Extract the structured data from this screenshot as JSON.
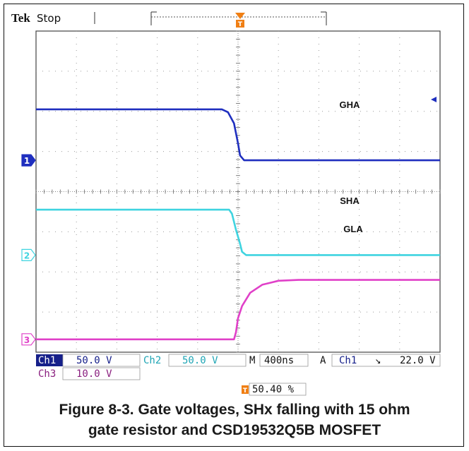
{
  "scope": {
    "brand": "Tek",
    "acq_state": "Stop",
    "trigger_marker": "T",
    "trigger_position": "50.40 %"
  },
  "settings": {
    "ch1_label": "Ch1",
    "ch1_scale": "50.0 V",
    "ch2_label": "Ch2",
    "ch2_scale": "50.0 V",
    "ch3_label": "Ch3",
    "ch3_scale": "10.0 V",
    "timebase_label": "M",
    "timebase": "400ns",
    "trigger_label": "A",
    "trigger_source": "Ch1",
    "trigger_slope": "↘",
    "trigger_level": "22.0 V"
  },
  "caption": {
    "line1": "Figure 8-3. Gate voltages, SHx falling with 15 ohm",
    "line2": "gate resistor and CSD19532Q5B MOSFET"
  },
  "colors": {
    "ch1": "#1f2fbf",
    "ch2": "#3fd4e0",
    "ch3": "#e040c8",
    "trigger": "#f07f14",
    "grid": "#9a9a9a"
  },
  "chart_data": {
    "type": "line",
    "x_unit": "divisions",
    "y_unit": "divisions",
    "xlim": [
      0,
      10
    ],
    "ylim": [
      -4,
      4
    ],
    "grid": true,
    "series": [
      {
        "name": "GHA",
        "channel": "1",
        "channel_marker": "1",
        "x": [
          0,
          4.6,
          4.75,
          4.9,
          5.0,
          5.05,
          5.15,
          10
        ],
        "y": [
          2.05,
          2.05,
          1.98,
          1.7,
          1.2,
          0.9,
          0.78,
          0.78
        ]
      },
      {
        "name": "SHA",
        "channel": "2",
        "channel_marker": "2",
        "x": [
          0,
          4.78,
          4.85,
          4.95,
          5.05,
          5.1,
          5.2,
          10
        ],
        "y": [
          -0.45,
          -0.45,
          -0.55,
          -0.95,
          -1.3,
          -1.5,
          -1.58,
          -1.58
        ]
      },
      {
        "name": "GLA",
        "channel": "3",
        "channel_marker": "3",
        "x": [
          0,
          4.9,
          4.95,
          5.0,
          5.1,
          5.3,
          5.6,
          6.0,
          6.5,
          10
        ],
        "y": [
          -3.68,
          -3.68,
          -3.5,
          -3.15,
          -2.85,
          -2.52,
          -2.32,
          -2.22,
          -2.2,
          -2.2
        ]
      }
    ]
  }
}
